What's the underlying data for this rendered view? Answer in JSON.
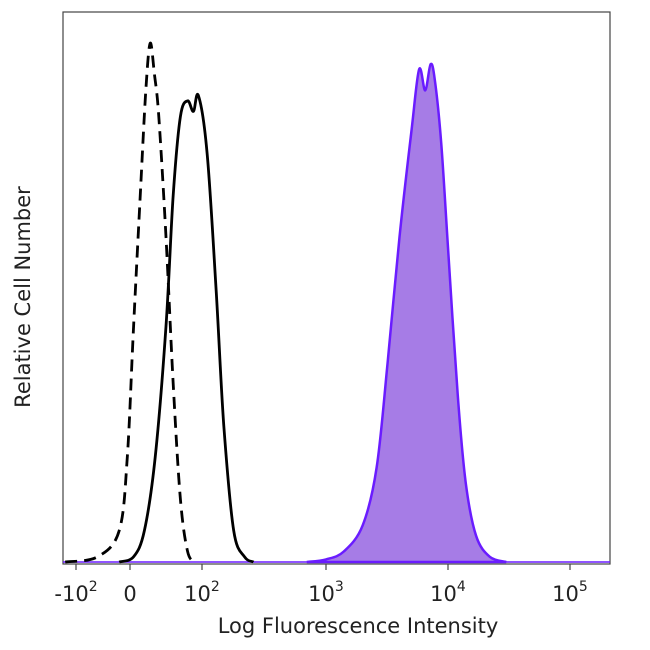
{
  "chart_data": {
    "type": "area",
    "xlabel": "Log Fluorescence Intensity",
    "ylabel": "Relative Cell Number",
    "x_scale": "biexponential",
    "x_ticks": [
      {
        "value": -100,
        "base": "-10",
        "exp": "2"
      },
      {
        "value": 0,
        "base": "0",
        "exp": ""
      },
      {
        "value": 100,
        "base": "10",
        "exp": "2"
      },
      {
        "value": 1000,
        "base": "10",
        "exp": "3"
      },
      {
        "value": 10000,
        "base": "10",
        "exp": "4"
      },
      {
        "value": 100000,
        "base": "10",
        "exp": "5"
      }
    ],
    "series": [
      {
        "style": "dashed",
        "color": "#000000",
        "fill": "none",
        "points": [
          [
            -120,
            0
          ],
          [
            -60,
            0.01
          ],
          [
            -20,
            0.06
          ],
          [
            -5,
            0.2
          ],
          [
            5,
            0.45
          ],
          [
            15,
            0.72
          ],
          [
            22,
            0.9
          ],
          [
            28,
            0.99
          ],
          [
            34,
            0.93
          ],
          [
            40,
            0.85
          ],
          [
            50,
            0.62
          ],
          [
            60,
            0.34
          ],
          [
            70,
            0.12
          ],
          [
            80,
            0.02
          ],
          [
            90,
            0
          ]
        ]
      },
      {
        "style": "solid",
        "color": "#000000",
        "fill": "none",
        "points": [
          [
            -20,
            0
          ],
          [
            5,
            0.01
          ],
          [
            20,
            0.06
          ],
          [
            35,
            0.2
          ],
          [
            50,
            0.45
          ],
          [
            60,
            0.7
          ],
          [
            70,
            0.85
          ],
          [
            80,
            0.88
          ],
          [
            88,
            0.86
          ],
          [
            95,
            0.89
          ],
          [
            110,
            0.78
          ],
          [
            130,
            0.52
          ],
          [
            150,
            0.26
          ],
          [
            180,
            0.06
          ],
          [
            220,
            0.01
          ],
          [
            260,
            0
          ]
        ]
      },
      {
        "style": "filled",
        "color": "#6a1cff",
        "fill": "#a67ce6",
        "points": [
          [
            700,
            0
          ],
          [
            1000,
            0.005
          ],
          [
            1400,
            0.02
          ],
          [
            2000,
            0.07
          ],
          [
            2600,
            0.18
          ],
          [
            3200,
            0.38
          ],
          [
            4000,
            0.62
          ],
          [
            5000,
            0.82
          ],
          [
            5800,
            0.94
          ],
          [
            6500,
            0.9
          ],
          [
            7200,
            0.95
          ],
          [
            7800,
            0.92
          ],
          [
            8800,
            0.8
          ],
          [
            10000,
            0.6
          ],
          [
            12000,
            0.32
          ],
          [
            14000,
            0.15
          ],
          [
            17000,
            0.05
          ],
          [
            22000,
            0.01
          ],
          [
            30000,
            0
          ]
        ]
      }
    ]
  }
}
